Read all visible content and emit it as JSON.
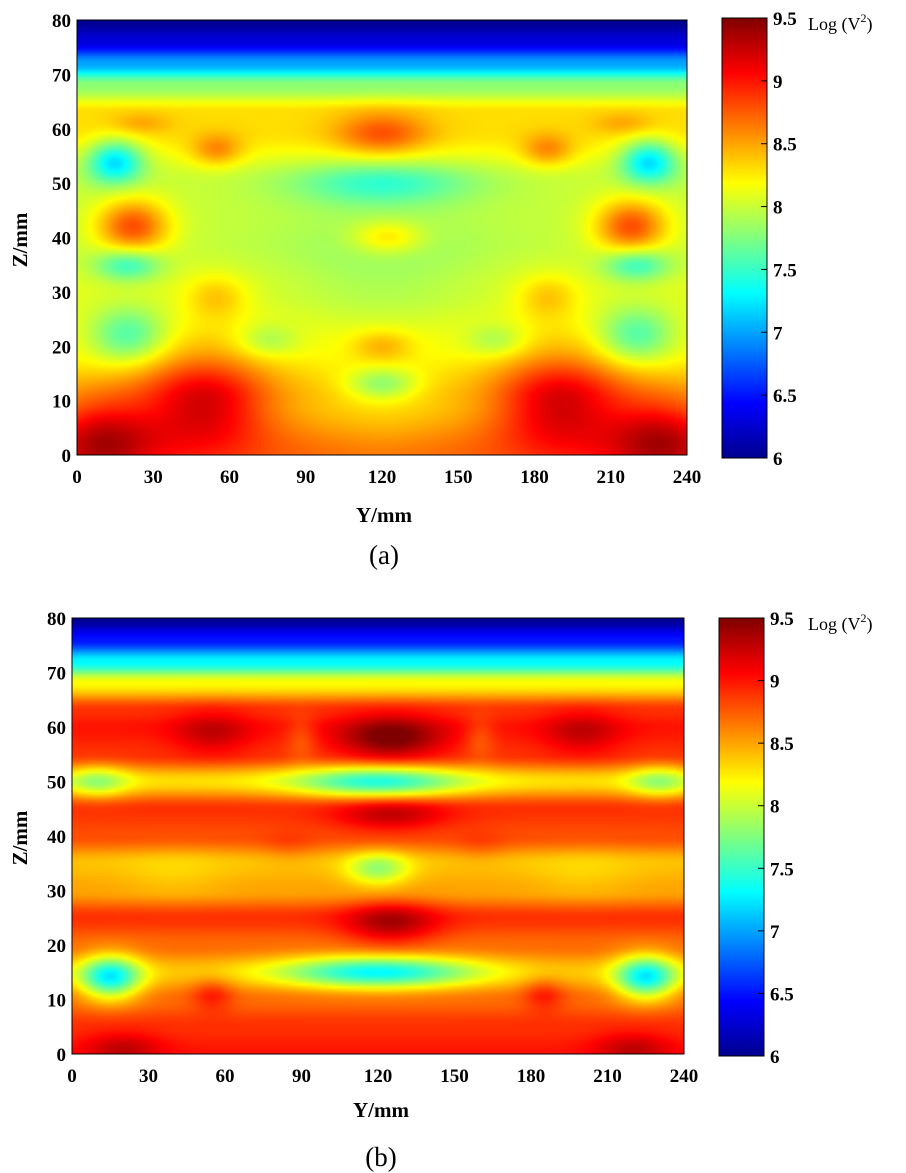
{
  "colormap": "jet",
  "chart_data": [
    {
      "type": "heatmap",
      "panel_label": "(a)",
      "xlabel": "Y/mm",
      "ylabel": "Z/mm",
      "xlim": [
        0,
        240
      ],
      "ylim": [
        0,
        80
      ],
      "xticks": [
        "0",
        "30",
        "60",
        "90",
        "120",
        "150",
        "180",
        "210",
        "240"
      ],
      "yticks": [
        "0",
        "10",
        "20",
        "30",
        "40",
        "50",
        "60",
        "70",
        "80"
      ],
      "colorbar": {
        "range": [
          6,
          9.5
        ],
        "ticks": [
          "6",
          "6.5",
          "7",
          "7.5",
          "8",
          "8.5",
          "9",
          "9.5"
        ],
        "unit_prefix": "Log (V",
        "unit_exponent": "2",
        "unit_suffix": ")"
      },
      "field": {
        "base": [
          {
            "z": 0,
            "v": 8.7
          },
          {
            "z": 10,
            "v": 8.4
          },
          {
            "z": 20,
            "v": 8.2
          },
          {
            "z": 30,
            "v": 8.1
          },
          {
            "z": 40,
            "v": 8.0
          },
          {
            "z": 50,
            "v": 8.0
          },
          {
            "z": 60,
            "v": 8.3
          },
          {
            "z": 63,
            "v": 8.3
          },
          {
            "z": 68,
            "v": 7.8
          },
          {
            "z": 72,
            "v": 7.0
          },
          {
            "z": 76,
            "v": 6.3
          },
          {
            "z": 80,
            "v": 6.0
          }
        ],
        "blobs": [
          {
            "y": 10,
            "z": 3,
            "ry": 22,
            "rz": 8,
            "dv": 0.7
          },
          {
            "y": 50,
            "z": 10,
            "ry": 25,
            "rz": 9,
            "dv": 0.8
          },
          {
            "y": 190,
            "z": 10,
            "ry": 25,
            "rz": 9,
            "dv": 0.8
          },
          {
            "y": 230,
            "z": 3,
            "ry": 22,
            "rz": 8,
            "dv": 0.7
          },
          {
            "y": 120,
            "z": 5,
            "ry": 24,
            "rz": 7,
            "dv": -0.1
          },
          {
            "y": 120,
            "z": 13,
            "ry": 14,
            "rz": 3,
            "dv": -0.5
          },
          {
            "y": 120,
            "z": 20,
            "ry": 12,
            "rz": 3,
            "dv": 0.3
          },
          {
            "y": 75,
            "z": 21,
            "ry": 12,
            "rz": 3,
            "dv": -0.3
          },
          {
            "y": 165,
            "z": 21,
            "ry": 12,
            "rz": 3,
            "dv": -0.3
          },
          {
            "y": 20,
            "z": 22,
            "ry": 15,
            "rz": 5,
            "dv": -0.6
          },
          {
            "y": 220,
            "z": 22,
            "ry": 15,
            "rz": 5,
            "dv": -0.6
          },
          {
            "y": 55,
            "z": 29,
            "ry": 12,
            "rz": 4,
            "dv": 0.3
          },
          {
            "y": 185,
            "z": 29,
            "ry": 12,
            "rz": 4,
            "dv": 0.3
          },
          {
            "y": 20,
            "z": 35,
            "ry": 13,
            "rz": 3,
            "dv": -0.6
          },
          {
            "y": 220,
            "z": 35,
            "ry": 13,
            "rz": 3,
            "dv": -0.6
          },
          {
            "y": 120,
            "z": 34,
            "ry": 45,
            "rz": 12,
            "dv": -0.2
          },
          {
            "y": 22,
            "z": 42,
            "ry": 14,
            "rz": 5,
            "dv": 0.8
          },
          {
            "y": 218,
            "z": 42,
            "ry": 14,
            "rz": 5,
            "dv": 0.8
          },
          {
            "y": 122,
            "z": 40,
            "ry": 14,
            "rz": 3,
            "dv": 0.4
          },
          {
            "y": 120,
            "z": 50,
            "ry": 35,
            "rz": 4,
            "dv": -0.5
          },
          {
            "y": 15,
            "z": 54,
            "ry": 11,
            "rz": 4,
            "dv": -0.9
          },
          {
            "y": 225,
            "z": 54,
            "ry": 11,
            "rz": 4,
            "dv": -0.9
          },
          {
            "y": 55,
            "z": 56,
            "ry": 10,
            "rz": 3,
            "dv": 0.4
          },
          {
            "y": 185,
            "z": 56,
            "ry": 10,
            "rz": 3,
            "dv": 0.4
          },
          {
            "y": 120,
            "z": 59,
            "ry": 18,
            "rz": 4,
            "dv": 0.5
          },
          {
            "y": 25,
            "z": 61,
            "ry": 12,
            "rz": 2,
            "dv": 0.2
          },
          {
            "y": 215,
            "z": 61,
            "ry": 12,
            "rz": 2,
            "dv": 0.2
          }
        ]
      }
    },
    {
      "type": "heatmap",
      "panel_label": "(b)",
      "xlabel": "Y/mm",
      "ylabel": "Z/mm",
      "xlim": [
        0,
        240
      ],
      "ylim": [
        0,
        80
      ],
      "xticks": [
        "0",
        "30",
        "60",
        "90",
        "120",
        "150",
        "180",
        "210",
        "240"
      ],
      "yticks": [
        "0",
        "10",
        "20",
        "30",
        "40",
        "50",
        "60",
        "70",
        "80"
      ],
      "colorbar": {
        "range": [
          6,
          9.5
        ],
        "ticks": [
          "6",
          "6.5",
          "7",
          "7.5",
          "8",
          "8.5",
          "9",
          "9.5"
        ],
        "unit_prefix": "Log (V",
        "unit_exponent": "2",
        "unit_suffix": ")"
      },
      "field": {
        "base": [
          {
            "z": 0,
            "v": 9.0
          },
          {
            "z": 5,
            "v": 8.9
          },
          {
            "z": 10,
            "v": 8.7
          },
          {
            "z": 15,
            "v": 8.4
          },
          {
            "z": 20,
            "v": 8.7
          },
          {
            "z": 25,
            "v": 8.9
          },
          {
            "z": 30,
            "v": 8.5
          },
          {
            "z": 35,
            "v": 8.4
          },
          {
            "z": 40,
            "v": 8.8
          },
          {
            "z": 45,
            "v": 8.9
          },
          {
            "z": 50,
            "v": 8.3
          },
          {
            "z": 55,
            "v": 8.9
          },
          {
            "z": 60,
            "v": 9.0
          },
          {
            "z": 63,
            "v": 8.9
          },
          {
            "z": 68,
            "v": 8.2
          },
          {
            "z": 72,
            "v": 7.3
          },
          {
            "z": 76,
            "v": 6.5
          },
          {
            "z": 80,
            "v": 6.0
          }
        ],
        "blobs": [
          {
            "y": 20,
            "z": 1,
            "ry": 15,
            "rz": 3,
            "dv": 0.3
          },
          {
            "y": 220,
            "z": 1,
            "ry": 15,
            "rz": 3,
            "dv": 0.3
          },
          {
            "y": 15,
            "z": 14,
            "ry": 12,
            "rz": 4,
            "dv": -1.2
          },
          {
            "y": 225,
            "z": 14,
            "ry": 12,
            "rz": 4,
            "dv": -1.2
          },
          {
            "y": 120,
            "z": 15,
            "ry": 38,
            "rz": 3,
            "dv": -1.1
          },
          {
            "y": 55,
            "z": 11,
            "ry": 8,
            "rz": 3,
            "dv": 0.3
          },
          {
            "y": 185,
            "z": 11,
            "ry": 8,
            "rz": 3,
            "dv": 0.3
          },
          {
            "y": 125,
            "z": 24,
            "ry": 18,
            "rz": 4,
            "dv": 0.5
          },
          {
            "y": 120,
            "z": 34,
            "ry": 12,
            "rz": 3,
            "dv": -0.6
          },
          {
            "y": 40,
            "z": 33,
            "ry": 20,
            "rz": 5,
            "dv": -0.1
          },
          {
            "y": 200,
            "z": 33,
            "ry": 20,
            "rz": 5,
            "dv": -0.1
          },
          {
            "y": 125,
            "z": 44,
            "ry": 22,
            "rz": 3,
            "dv": 0.4
          },
          {
            "y": 85,
            "z": 38,
            "ry": 10,
            "rz": 3,
            "dv": 0.1
          },
          {
            "y": 160,
            "z": 38,
            "ry": 10,
            "rz": 3,
            "dv": 0.1
          },
          {
            "y": 120,
            "z": 50,
            "ry": 32,
            "rz": 3,
            "dv": -0.9
          },
          {
            "y": 10,
            "z": 50,
            "ry": 12,
            "rz": 3,
            "dv": -0.5
          },
          {
            "y": 230,
            "z": 50,
            "ry": 12,
            "rz": 3,
            "dv": -0.5
          },
          {
            "y": 125,
            "z": 58,
            "ry": 20,
            "rz": 4,
            "dv": 0.6
          },
          {
            "y": 55,
            "z": 59,
            "ry": 15,
            "rz": 4,
            "dv": 0.3
          },
          {
            "y": 200,
            "z": 59,
            "ry": 15,
            "rz": 4,
            "dv": 0.3
          },
          {
            "y": 90,
            "z": 58,
            "ry": 6,
            "rz": 4,
            "dv": -0.2
          },
          {
            "y": 160,
            "z": 58,
            "ry": 6,
            "rz": 4,
            "dv": -0.2
          }
        ]
      }
    }
  ]
}
